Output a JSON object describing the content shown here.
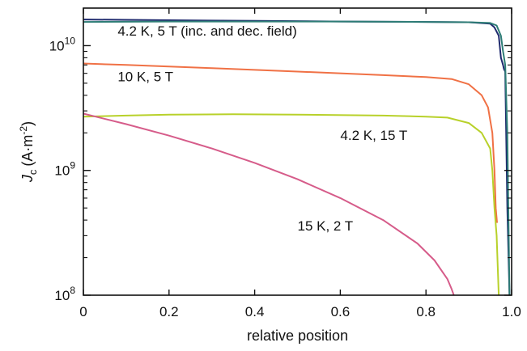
{
  "chart_data": {
    "type": "line",
    "xlabel": "relative position",
    "ylabel": {
      "symbol": "J",
      "subscript": "c",
      "units_prefix": "(A·m",
      "units_exp": "-2",
      "units_suffix": ")"
    },
    "xlim": [
      0,
      1
    ],
    "ylim": [
      100000000.0,
      20000000000.0
    ],
    "yscale": "log",
    "x_ticks": [
      0,
      0.2,
      0.4,
      0.6,
      0.8,
      1.0
    ],
    "x_tick_labels": [
      "0",
      "0.2",
      "0.4",
      "0.6",
      "0.8",
      "1.0"
    ],
    "y_ticks": [
      {
        "value": 100000000.0,
        "base": "10",
        "exp": "8"
      },
      {
        "value": 1000000000.0,
        "base": "10",
        "exp": "9"
      },
      {
        "value": 10000000000.0,
        "base": "10",
        "exp": "10"
      }
    ],
    "grid": false,
    "series": [
      {
        "color": "#1f2a6e",
        "points": [
          [
            0,
            16200000000.0
          ],
          [
            0.2,
            16000000000.0
          ],
          [
            0.4,
            15800000000.0
          ],
          [
            0.6,
            15600000000.0
          ],
          [
            0.8,
            15500000000.0
          ],
          [
            0.9,
            15400000000.0
          ],
          [
            0.95,
            15000000000.0
          ],
          [
            0.96,
            14000000000.0
          ],
          [
            0.97,
            12000000000.0
          ],
          [
            0.975,
            8000000000.0
          ],
          [
            0.98,
            7000000000.0
          ],
          [
            0.982,
            6500000000.0
          ],
          [
            0.985,
            6200000000.0
          ],
          [
            0.99,
            500000000.0
          ],
          [
            0.995,
            100000000.0
          ]
        ]
      },
      {
        "color": "#2e7d76",
        "points": [
          [
            0,
            15500000000.0
          ],
          [
            0.2,
            15600000000.0
          ],
          [
            0.4,
            15600000000.0
          ],
          [
            0.6,
            15600000000.0
          ],
          [
            0.8,
            15500000000.0
          ],
          [
            0.9,
            15400000000.0
          ],
          [
            0.95,
            15200000000.0
          ],
          [
            0.965,
            14500000000.0
          ],
          [
            0.975,
            12000000000.0
          ],
          [
            0.98,
            9000000000.0
          ],
          [
            0.985,
            7000000000.0
          ],
          [
            0.99,
            2000000000.0
          ],
          [
            0.995,
            100000000.0
          ]
        ]
      },
      {
        "color": "#f07145",
        "points": [
          [
            0,
            7200000000.0
          ],
          [
            0.1,
            7000000000.0
          ],
          [
            0.3,
            6600000000.0
          ],
          [
            0.5,
            6200000000.0
          ],
          [
            0.7,
            5800000000.0
          ],
          [
            0.8,
            5600000000.0
          ],
          [
            0.86,
            5400000000.0
          ],
          [
            0.9,
            4900000000.0
          ],
          [
            0.93,
            4000000000.0
          ],
          [
            0.945,
            3200000000.0
          ],
          [
            0.955,
            2000000000.0
          ],
          [
            0.96,
            1000000000.0
          ],
          [
            0.963,
            500000000.0
          ],
          [
            0.966,
            380000000.0
          ]
        ]
      },
      {
        "color": "#b8d12a",
        "points": [
          [
            0,
            2700000000.0
          ],
          [
            0.1,
            2750000000.0
          ],
          [
            0.2,
            2800000000.0
          ],
          [
            0.35,
            2820000000.0
          ],
          [
            0.5,
            2800000000.0
          ],
          [
            0.7,
            2750000000.0
          ],
          [
            0.8,
            2700000000.0
          ],
          [
            0.85,
            2650000000.0
          ],
          [
            0.9,
            2400000000.0
          ],
          [
            0.93,
            2000000000.0
          ],
          [
            0.95,
            1500000000.0
          ],
          [
            0.955,
            1000000000.0
          ],
          [
            0.96,
            500000000.0
          ],
          [
            0.965,
            300000000.0
          ],
          [
            0.97,
            100000000.0
          ]
        ]
      },
      {
        "color": "#d65c8a",
        "points": [
          [
            0,
            2850000000.0
          ],
          [
            0.1,
            2350000000.0
          ],
          [
            0.2,
            1900000000.0
          ],
          [
            0.3,
            1500000000.0
          ],
          [
            0.4,
            1150000000.0
          ],
          [
            0.5,
            850000000.0
          ],
          [
            0.6,
            600000000.0
          ],
          [
            0.7,
            400000000.0
          ],
          [
            0.78,
            260000000.0
          ],
          [
            0.82,
            190000000.0
          ],
          [
            0.85,
            135000000.0
          ],
          [
            0.86,
            112000000.0
          ],
          [
            0.865,
            100000000.0
          ]
        ]
      }
    ],
    "annotations": [
      {
        "text": "4.2 K, 5 T (inc. and dec. field)",
        "x": 0.08,
        "y": 12000000000.0
      },
      {
        "text": "10 K, 5 T",
        "x": 0.08,
        "y": 5200000000.0
      },
      {
        "text": "4.2 K, 15 T",
        "x": 0.6,
        "y": 1750000000.0
      },
      {
        "text": "15 K, 2 T",
        "x": 0.5,
        "y": 330000000.0
      }
    ]
  }
}
